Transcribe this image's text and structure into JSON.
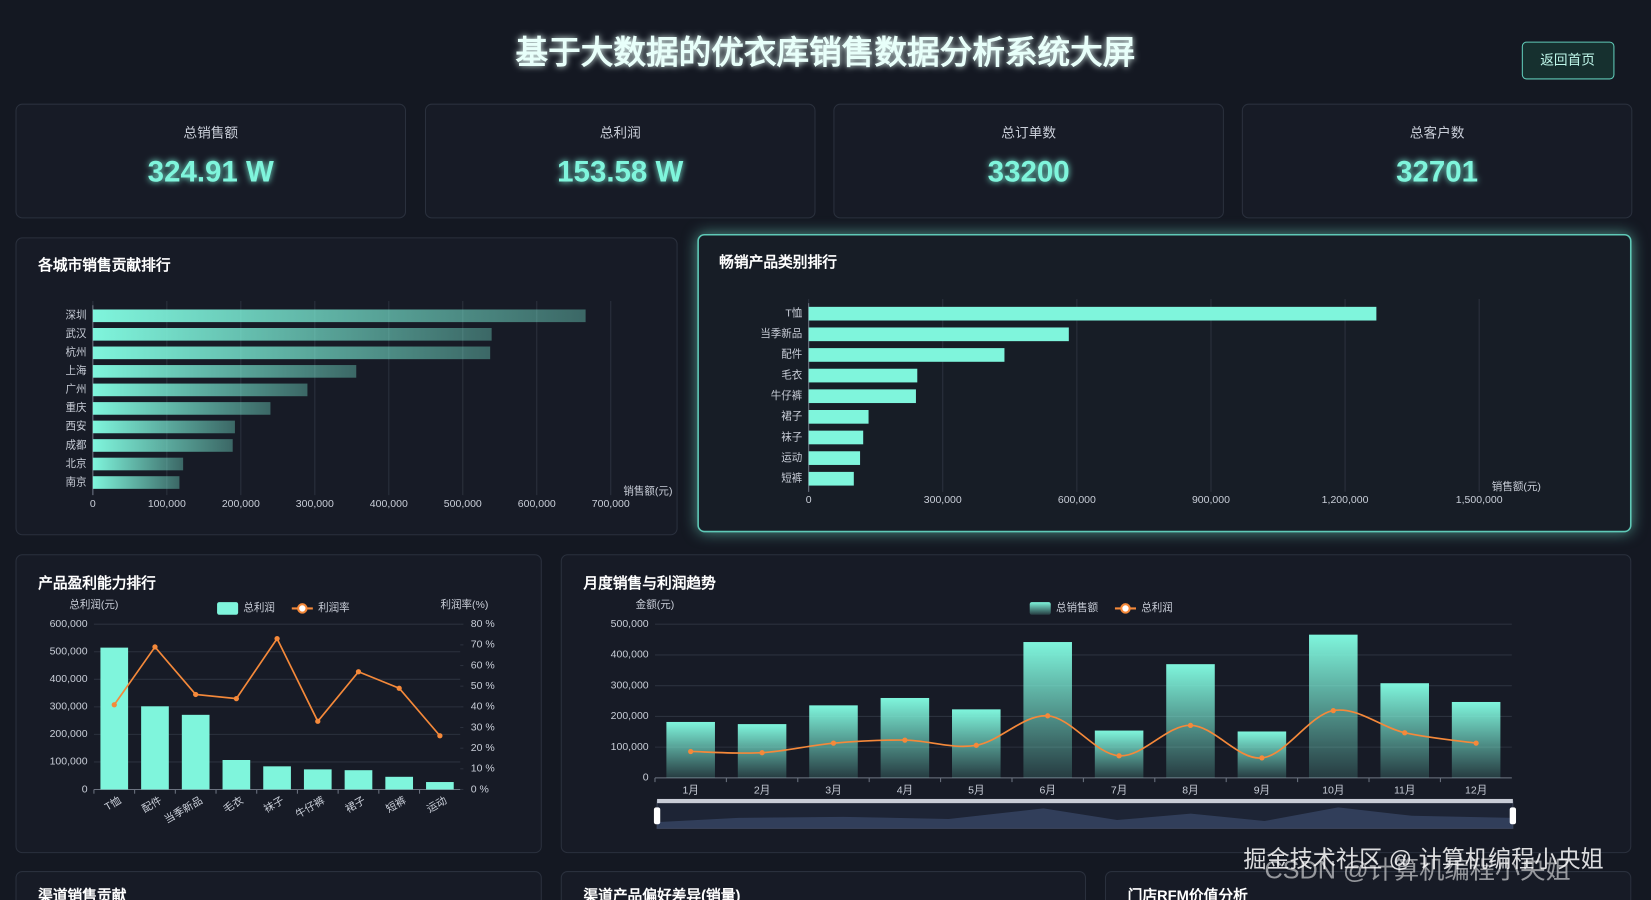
{
  "header": {
    "title": "基于大数据的优衣库销售数据分析系统大屏",
    "button": "返回首页"
  },
  "kpis": [
    {
      "label": "总销售额",
      "value": "324.91 W"
    },
    {
      "label": "总利润",
      "value": "153.58 W"
    },
    {
      "label": "总订单数",
      "value": "33200"
    },
    {
      "label": "总客户数",
      "value": "32701"
    }
  ],
  "chart_data": [
    {
      "type": "bar",
      "orientation": "horizontal",
      "title": "各城市销售贡献排行",
      "xlabel": "销售额(元)",
      "color": "#7ff5dc",
      "categories": [
        "深圳",
        "武汉",
        "杭州",
        "上海",
        "广州",
        "重庆",
        "西安",
        "成都",
        "北京",
        "南京"
      ],
      "values": [
        666000,
        539000,
        537000,
        356000,
        290000,
        240000,
        192000,
        189000,
        122000,
        117000
      ],
      "xlim": [
        0,
        700000
      ],
      "xticks": [
        0,
        {
          "value": 100000,
          "label": "100,000"
        },
        {
          "value": 200000,
          "label": "200,000"
        },
        {
          "value": 300000,
          "label": "300,000"
        },
        {
          "value": 400000,
          "label": "400,000"
        },
        {
          "value": 500000,
          "label": "500,000"
        },
        {
          "value": 600000,
          "label": "600,000"
        },
        {
          "value": 700000,
          "label": "700,000"
        }
      ],
      "grid": true
    },
    {
      "type": "bar",
      "orientation": "horizontal",
      "title": "畅销产品类别排行",
      "xlabel": "销售额(元)",
      "color": "#7ff5dc",
      "categories": [
        "T恤",
        "当季新品",
        "配件",
        "毛衣",
        "牛仔裤",
        "裙子",
        "袜子",
        "运动",
        "短裤"
      ],
      "values": [
        1270000,
        582000,
        438000,
        243000,
        240000,
        134000,
        122000,
        115000,
        101000
      ],
      "xlim": [
        0,
        1500000
      ],
      "xticks": [
        0,
        {
          "value": 300000,
          "label": "300,000"
        },
        {
          "value": 600000,
          "label": "600,000"
        },
        {
          "value": 900000,
          "label": "900,000"
        },
        {
          "value": 1200000,
          "label": "1,200,000"
        },
        {
          "value": 1500000,
          "label": "1,500,000"
        }
      ],
      "grid": true
    },
    {
      "type": "combo",
      "title": "产品盈利能力排行",
      "ylabel": "总利润(元)",
      "y2label": "利润率(%)",
      "categories": [
        "T恤",
        "配件",
        "当季新品",
        "毛衣",
        "袜子",
        "牛仔裤",
        "裙子",
        "短裤",
        "运动"
      ],
      "series": [
        {
          "name": "总利润",
          "type": "bar",
          "color": "#7ff5dc",
          "values": [
            515000,
            302000,
            271000,
            107000,
            84000,
            73000,
            70000,
            46000,
            27000
          ]
        },
        {
          "name": "利润率",
          "type": "line",
          "axis": "y2",
          "color": "#f5893a",
          "values": [
            41,
            69,
            46,
            44,
            73,
            33,
            57,
            49,
            26
          ]
        }
      ],
      "ylim": [
        0,
        600000
      ],
      "yticks": [
        0,
        {
          "value": 100000,
          "label": "100,000"
        },
        {
          "value": 200000,
          "label": "200,000"
        },
        {
          "value": 300000,
          "label": "300,000"
        },
        {
          "value": 400000,
          "label": "400,000"
        },
        {
          "value": 500000,
          "label": "500,000"
        },
        {
          "value": 600000,
          "label": "600,000"
        }
      ],
      "y2lim": [
        0,
        80
      ],
      "y2ticks": [
        {
          "value": 0,
          "label": "0 %"
        },
        {
          "value": 10,
          "label": "10 %"
        },
        {
          "value": 20,
          "label": "20 %"
        },
        {
          "value": 30,
          "label": "30 %"
        },
        {
          "value": 40,
          "label": "40 %"
        },
        {
          "value": 50,
          "label": "50 %"
        },
        {
          "value": 60,
          "label": "60 %"
        },
        {
          "value": 70,
          "label": "70 %"
        },
        {
          "value": 80,
          "label": "80 %"
        }
      ],
      "grid": true,
      "smooth": false
    },
    {
      "type": "combo",
      "title": "月度销售与利润趋势",
      "ylabel": "金额(元)",
      "categories": [
        "1月",
        "2月",
        "3月",
        "4月",
        "5月",
        "6月",
        "7月",
        "8月",
        "9月",
        "10月",
        "11月",
        "12月"
      ],
      "series": [
        {
          "name": "总销售额",
          "type": "bar",
          "color": "#7ff5dc",
          "values": [
            182000,
            175000,
            236000,
            260000,
            223000,
            442000,
            154000,
            370000,
            151000,
            466000,
            308000,
            247000
          ]
        },
        {
          "name": "总利润",
          "type": "line",
          "color": "#f5893a",
          "values": [
            86000,
            82000,
            113000,
            123000,
            106000,
            202000,
            72000,
            171000,
            65000,
            219000,
            147000,
            113000
          ]
        }
      ],
      "ylim": [
        0,
        500000
      ],
      "yticks": [
        0,
        {
          "value": 100000,
          "label": "100,000"
        },
        {
          "value": 200000,
          "label": "200,000"
        },
        {
          "value": 300000,
          "label": "300,000"
        },
        {
          "value": 400000,
          "label": "400,000"
        },
        {
          "value": 500000,
          "label": "500,000"
        }
      ],
      "grid": true,
      "smooth": true
    }
  ],
  "bottom_panels": [
    "渠道销售贡献",
    "渠道产品偏好差异(销量)",
    "门店RFM价值分析"
  ],
  "watermark": [
    "掘金技术社区 @ 计算机编程小央姐",
    "CSDN @计算机编程小央姐"
  ]
}
